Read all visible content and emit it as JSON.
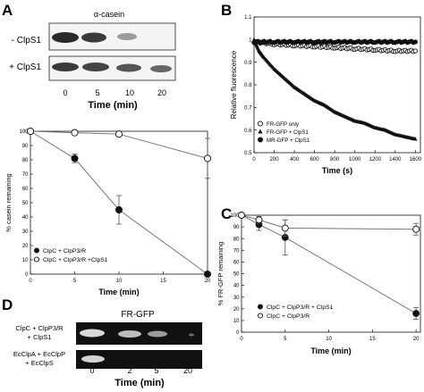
{
  "panels": {
    "A": {
      "letter": "A",
      "gel": {
        "antibody": "α-casein",
        "row_labels": [
          "- ClpS1",
          "+ ClpS1"
        ],
        "lane_ticks": [
          "0",
          "5",
          "10",
          "20"
        ],
        "axis_label": "Time (min)"
      }
    },
    "B": {
      "letter": "B"
    },
    "C": {
      "letter": "C"
    },
    "D": {
      "letter": "D",
      "gel": {
        "title": "FR-GFP",
        "row_labels": [
          [
            "ClpC + ClpP3/R",
            "+ ClpS1"
          ],
          [
            "EcClpA + EcClpP",
            "+ EcClpS"
          ]
        ],
        "lane_ticks": [
          "0",
          "2",
          "5",
          "20"
        ],
        "axis_label": "Time (min)"
      }
    }
  },
  "chart_data": [
    {
      "panel": "A",
      "type": "line",
      "xlabel": "Time (min)",
      "ylabel": "% casein remaining",
      "xlim": [
        0,
        20
      ],
      "ylim": [
        0,
        100
      ],
      "xticks": [
        0,
        5,
        10,
        15,
        20
      ],
      "yticks": [
        0,
        10,
        20,
        30,
        40,
        50,
        60,
        70,
        80,
        90,
        100
      ],
      "legend_position": "bottom-left",
      "series": [
        {
          "name": "ClpC + ClpP3/R",
          "marker": "filled-circle",
          "x": [
            0,
            5,
            10,
            20
          ],
          "y": [
            100,
            81,
            45,
            0
          ],
          "err": [
            0,
            3,
            10,
            0
          ]
        },
        {
          "name": "ClpC + ClpP3/R +ClpS1",
          "marker": "open-circle",
          "x": [
            0,
            5,
            10,
            20
          ],
          "y": [
            100,
            99,
            98,
            81
          ],
          "err": [
            0,
            0,
            0,
            14
          ]
        }
      ]
    },
    {
      "panel": "B",
      "type": "scatter",
      "xlabel": "Time (s)",
      "ylabel": "Relative fluorescence",
      "xlim": [
        0,
        1650
      ],
      "ylim": [
        0.5,
        1.1
      ],
      "xticks": [
        0,
        200,
        400,
        600,
        800,
        1000,
        1200,
        1400,
        1600
      ],
      "yticks": [
        0.5,
        0.6,
        0.7,
        0.8,
        0.9,
        1.0,
        1.1
      ],
      "legend_position": "bottom-left",
      "series": [
        {
          "name": "FR-GFP only",
          "marker": "open-circle",
          "x": [
            0,
            200,
            400,
            600,
            800,
            1000,
            1200,
            1400,
            1600
          ],
          "y": [
            0.99,
            0.98,
            0.975,
            0.97,
            0.965,
            0.96,
            0.955,
            0.95,
            0.95
          ]
        },
        {
          "name": "FR-GFP + ClpS1",
          "marker": "filled-triangle",
          "x": [
            0,
            50,
            100,
            200,
            300,
            400,
            500,
            600,
            700,
            800,
            900,
            1000,
            1100,
            1200,
            1300,
            1400,
            1500,
            1600
          ],
          "y": [
            1.0,
            0.95,
            0.92,
            0.87,
            0.83,
            0.79,
            0.76,
            0.73,
            0.71,
            0.68,
            0.66,
            0.64,
            0.63,
            0.61,
            0.6,
            0.58,
            0.57,
            0.56
          ]
        },
        {
          "name": "MR-GFP + ClpS1",
          "marker": "filled-circle",
          "x": [
            0,
            200,
            400,
            600,
            800,
            1000,
            1200,
            1400,
            1600
          ],
          "y": [
            0.99,
            0.99,
            0.99,
            0.99,
            0.99,
            0.99,
            0.99,
            0.99,
            0.99
          ]
        }
      ]
    },
    {
      "panel": "C",
      "type": "line",
      "xlabel": "Time (min)",
      "ylabel": "% FR-GFP remaining",
      "xlim": [
        0,
        20.5
      ],
      "ylim": [
        0,
        100
      ],
      "xticks": [
        0,
        5,
        10,
        15,
        20
      ],
      "yticks": [
        0,
        10,
        20,
        30,
        40,
        50,
        60,
        70,
        80,
        90,
        100
      ],
      "legend_position": "bottom-left",
      "series": [
        {
          "name": "ClpC + ClpP3/R + ClpS1",
          "marker": "filled-circle",
          "x": [
            0,
            2,
            5,
            20
          ],
          "y": [
            100,
            92,
            81,
            16
          ],
          "err": [
            0,
            5,
            15,
            5
          ]
        },
        {
          "name": "ClpC + ClpP3/R",
          "marker": "open-circle",
          "x": [
            0,
            2,
            5,
            20
          ],
          "y": [
            100,
            96,
            89,
            88
          ],
          "err": [
            0,
            3,
            7,
            5
          ]
        }
      ]
    }
  ]
}
